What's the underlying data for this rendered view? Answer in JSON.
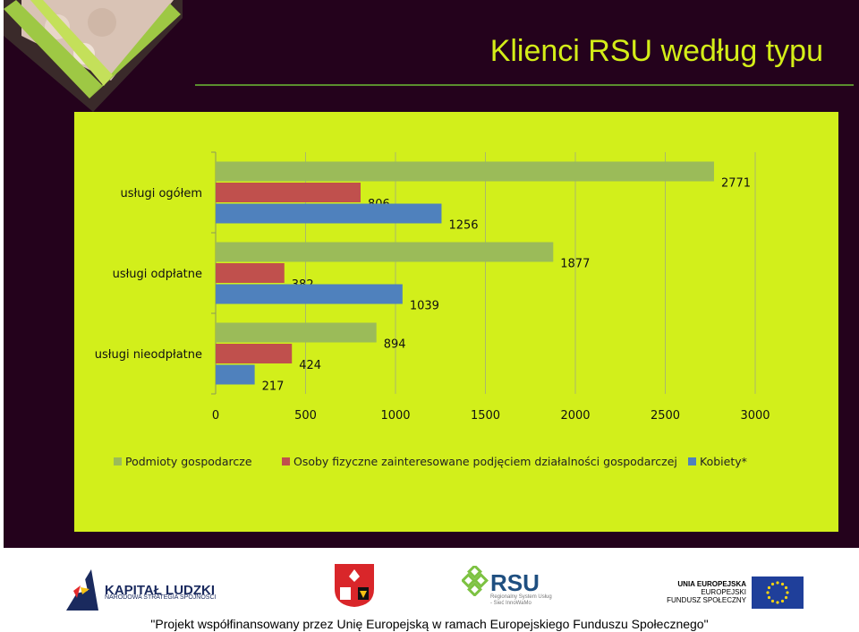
{
  "slide": {
    "title": "Klienci RSU według typu"
  },
  "chart_data": {
    "type": "bar",
    "orientation": "horizontal",
    "categories": [
      "usługi ogółem",
      "usługi odpłatne",
      "usługi nieodpłatne"
    ],
    "series": [
      {
        "name": "Podmioty gospodarcze",
        "color": "#9bbb59",
        "values": [
          2771,
          1877,
          894
        ]
      },
      {
        "name": "Osoby fizyczne zainteresowane podjęciem działalności gospodarczej",
        "color": "#c0504d",
        "values": [
          806,
          382,
          424
        ]
      },
      {
        "name": "Kobiety*",
        "color": "#4f81bd",
        "values": [
          1256,
          1039,
          217
        ]
      }
    ],
    "xlim": [
      0,
      3000
    ],
    "xticks": [
      0,
      500,
      1000,
      1500,
      2000,
      2500,
      3000
    ],
    "grid": true,
    "legend": "bottom"
  },
  "footer": {
    "kapital_ludzki": "KAPITAŁ LUDZKI",
    "kapital_ludzki_sub": "NARODOWA STRATEGIA SPÓJNOŚCI",
    "rsu": "RSU",
    "rsu_sub1": "Regionalny System Usług",
    "rsu_sub2": "- Sieć InnoWaMo",
    "eu_line1": "UNIA EUROPEJSKA",
    "eu_line2": "EUROPEJSKI",
    "eu_line3": "FUNDUSZ SPOŁECZNY",
    "cofinancing": "\"Projekt współfinansowany przez Unię Europejską w ramach Europejskiego Funduszu Społecznego\""
  },
  "colors": {
    "slide_background": "#24021c",
    "chart_background": "#d2ef1b",
    "title": "#d4ee18",
    "accent_green": "#7dc242"
  },
  "icons": [
    "people-hands-photo",
    "kapital-ludzki-logo",
    "coat-of-arms",
    "rsu-logo",
    "eu-flag"
  ]
}
